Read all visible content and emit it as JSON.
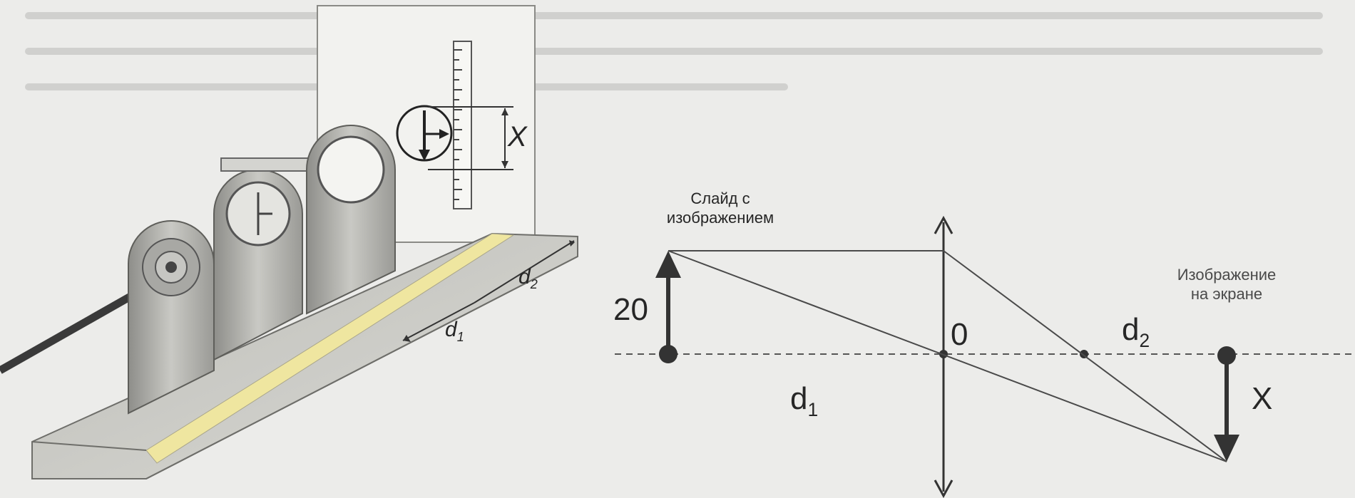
{
  "photo": {
    "scale_label": "X",
    "distance_1_main": "d",
    "distance_1_sub": "1",
    "distance_2_main": "d",
    "distance_2_sub": "2"
  },
  "schematic": {
    "slide_label_line1": "Слайд с",
    "slide_label_line2": "изображением",
    "object_height": "20",
    "lens_center": "0",
    "distance_1_main": "d",
    "distance_1_sub": "1",
    "distance_2_main": "d",
    "distance_2_sub": "2",
    "image_label_line1": "Изображение",
    "image_label_line2": "на экране",
    "image_height": "X"
  }
}
